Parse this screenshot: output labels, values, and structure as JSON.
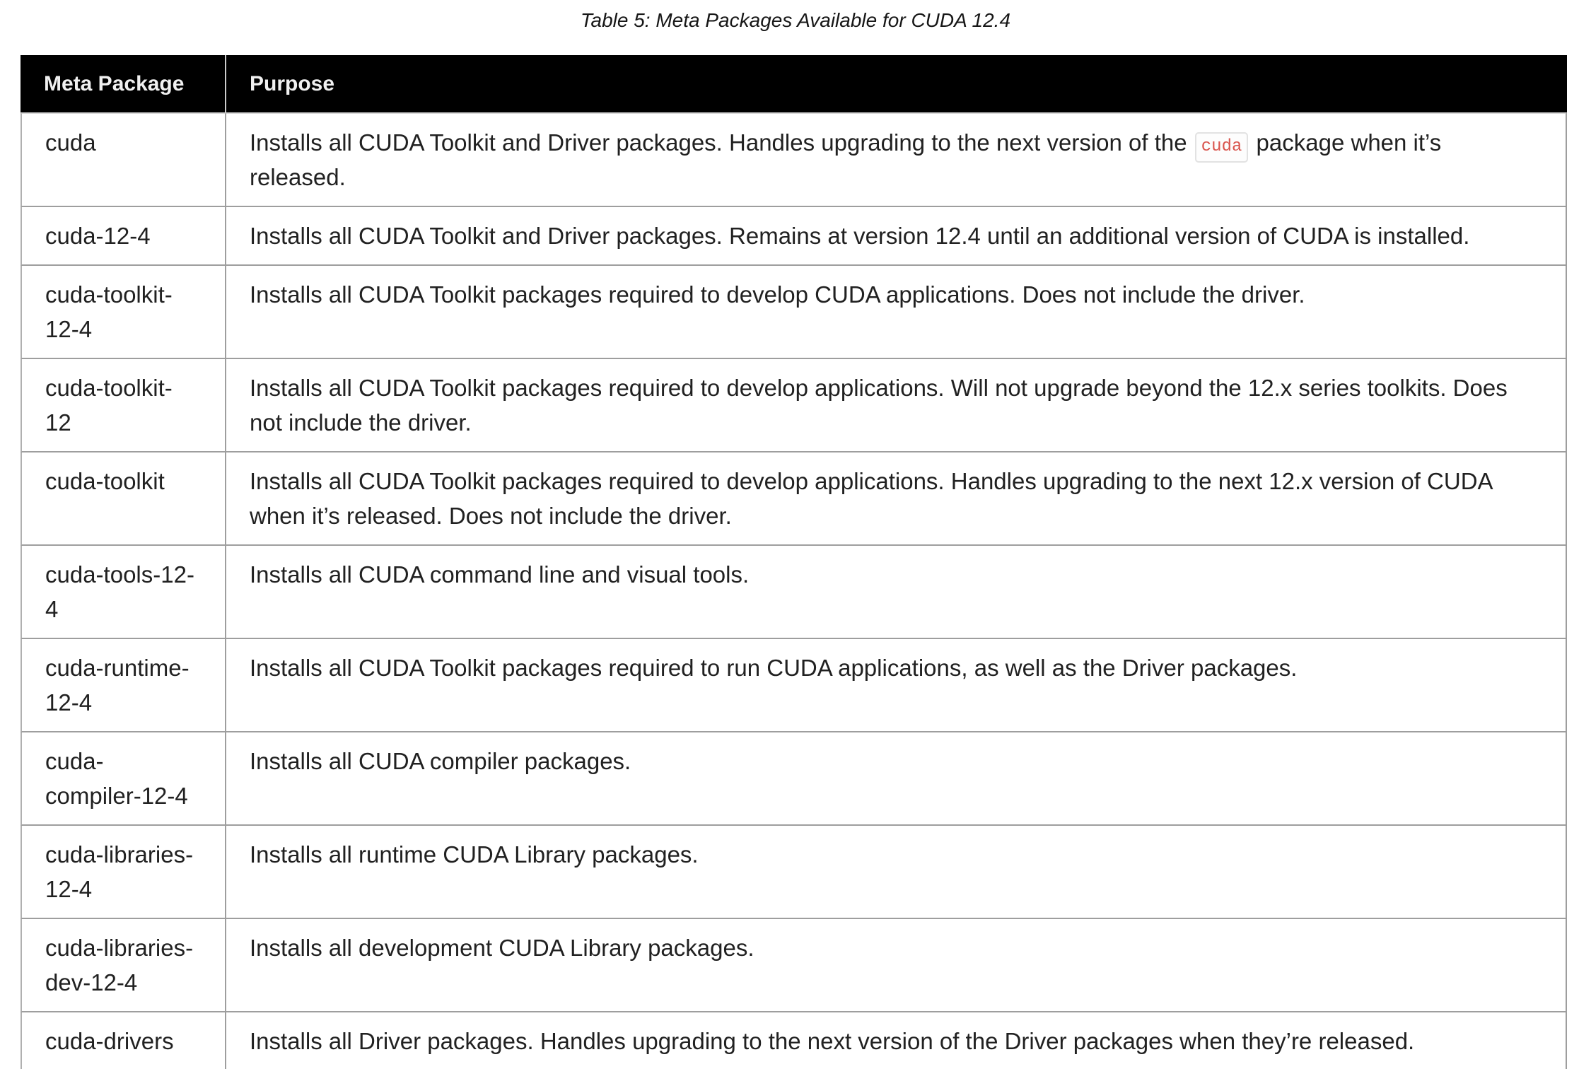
{
  "caption": "Table 5: Meta Packages Available for CUDA 12.4",
  "colors": {
    "header_bg": "#000000",
    "header_text": "#f0f0f0",
    "body_text": "#212121",
    "row_border": "#9e9e9e",
    "header_divider": "#cccccc",
    "code_text": "#d9544d",
    "code_border": "#e2e2e2"
  },
  "table": {
    "headers": [
      "Meta Package",
      "Purpose"
    ],
    "rows": [
      {
        "package": "cuda",
        "purpose": [
          {
            "code": false,
            "text": "Installs all CUDA Toolkit and Driver packages. Handles upgrading to the next version of the "
          },
          {
            "code": true,
            "text": "cuda"
          },
          {
            "code": false,
            "text": " package when it’s released."
          }
        ]
      },
      {
        "package": "cuda-12-4",
        "purpose": [
          {
            "code": false,
            "text": "Installs all CUDA Toolkit and Driver packages. Remains at version 12.4 until an additional version of CUDA is installed."
          }
        ]
      },
      {
        "package": "cuda-toolkit-12-4",
        "purpose": [
          {
            "code": false,
            "text": "Installs all CUDA Toolkit packages required to develop CUDA applications. Does not include the driver."
          }
        ]
      },
      {
        "package": "cuda-toolkit-12",
        "purpose": [
          {
            "code": false,
            "text": "Installs all CUDA Toolkit packages required to develop applications. Will not upgrade beyond the 12.x series toolkits. Does not include the driver."
          }
        ]
      },
      {
        "package": "cuda-toolkit",
        "purpose": [
          {
            "code": false,
            "text": "Installs all CUDA Toolkit packages required to develop applications. Handles upgrading to the next 12.x version of CUDA when it’s released. Does not include the driver."
          }
        ]
      },
      {
        "package": "cuda-tools-12-4",
        "purpose": [
          {
            "code": false,
            "text": "Installs all CUDA command line and visual tools."
          }
        ]
      },
      {
        "package": "cuda-runtime-12-4",
        "purpose": [
          {
            "code": false,
            "text": "Installs all CUDA Toolkit packages required to run CUDA applications, as well as the Driver packages."
          }
        ]
      },
      {
        "package": "cuda-compiler-12-4",
        "purpose": [
          {
            "code": false,
            "text": "Installs all CUDA compiler packages."
          }
        ]
      },
      {
        "package": "cuda-libraries-12-4",
        "purpose": [
          {
            "code": false,
            "text": "Installs all runtime CUDA Library packages."
          }
        ]
      },
      {
        "package": "cuda-libraries-dev-12-4",
        "purpose": [
          {
            "code": false,
            "text": "Installs all development CUDA Library packages."
          }
        ]
      },
      {
        "package": "cuda-drivers",
        "purpose": [
          {
            "code": false,
            "text": "Installs all Driver packages. Handles upgrading to the next version of the Driver packages when they’re released."
          }
        ]
      }
    ]
  }
}
